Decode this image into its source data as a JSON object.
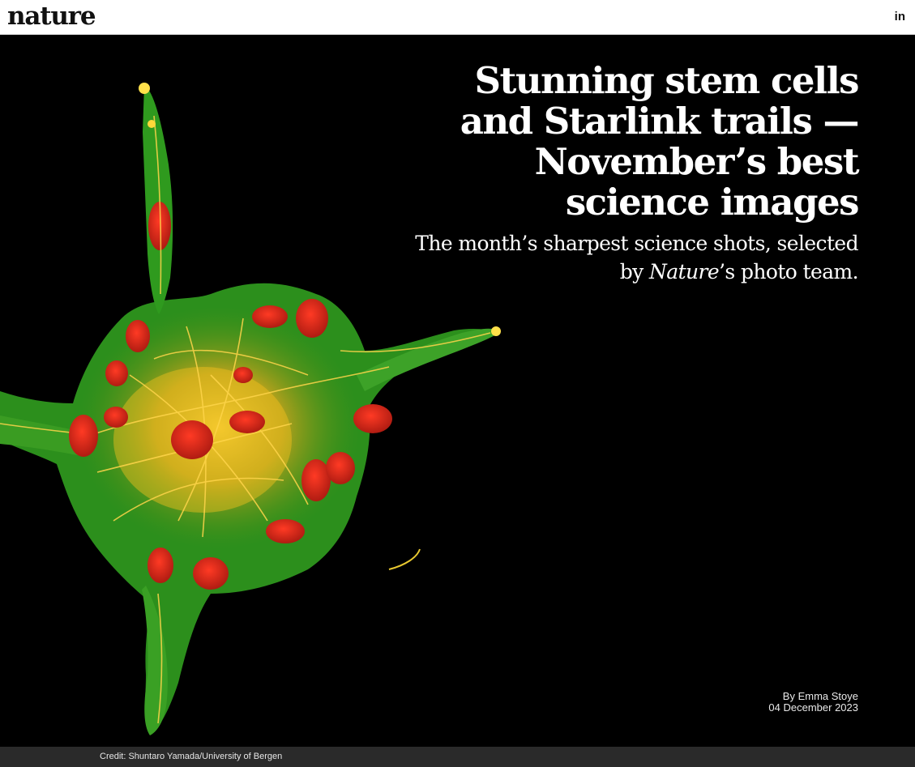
{
  "header": {
    "logo_text": "nature",
    "linkedin_label": "in"
  },
  "article": {
    "headline": "Stunning stem cells and Starlink trails — November’s best science images",
    "dek_before": "The month’s sharpest science shots, selected by ",
    "dek_italic": "Nature",
    "dek_after": "’s photo team.",
    "author": "By Emma Stoye",
    "date": "04 December 2023"
  },
  "image": {
    "credit": "Credit: Shuntaro Yamada/University of Bergen",
    "colors": {
      "background": "#000000",
      "membrane": "#2f9a1e",
      "filaments": "#f2c21a",
      "nuclei": "#d8281c"
    }
  }
}
